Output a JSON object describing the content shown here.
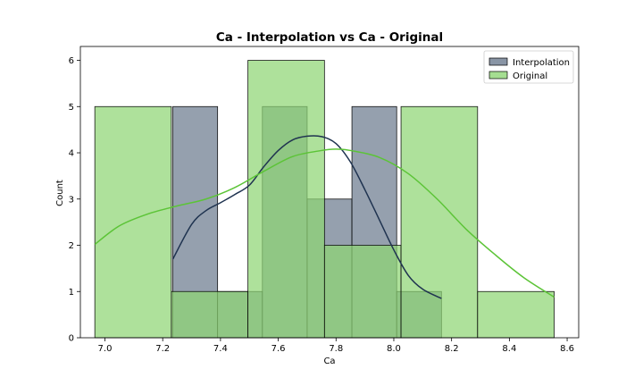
{
  "chart_data": {
    "type": "histogram",
    "title": "Ca - Interpolation vs Ca - Original",
    "xlabel": "Ca",
    "ylabel": "Count",
    "xlim": [
      6.915,
      8.64
    ],
    "ylim": [
      0,
      6.3
    ],
    "xticks": [
      "7.0",
      "7.2",
      "7.4",
      "7.6",
      "7.8",
      "8.0",
      "8.2",
      "8.4",
      "8.6"
    ],
    "xtick_values": [
      7.0,
      7.2,
      7.4,
      7.6,
      7.8,
      8.0,
      8.2,
      8.4,
      8.6
    ],
    "yticks": [
      "0",
      "1",
      "2",
      "3",
      "4",
      "5",
      "6"
    ],
    "ytick_values": [
      0,
      1,
      2,
      3,
      4,
      5,
      6
    ],
    "grid": false,
    "legend_position": "top-right",
    "series": [
      {
        "name": "Interpolation",
        "fill": "#6c7b8f",
        "line": "#1f3350",
        "bins": [
          {
            "x0": 7.235,
            "x1": 7.39,
            "count": 5
          },
          {
            "x0": 7.39,
            "x1": 7.545,
            "count": 1
          },
          {
            "x0": 7.545,
            "x1": 7.7,
            "count": 5
          },
          {
            "x0": 7.7,
            "x1": 7.855,
            "count": 3
          },
          {
            "x0": 7.855,
            "x1": 8.01,
            "count": 5
          },
          {
            "x0": 8.01,
            "x1": 8.165,
            "count": 1
          }
        ],
        "kde": {
          "x": [
            7.235,
            7.3,
            7.35,
            7.4,
            7.45,
            7.5,
            7.55,
            7.6,
            7.65,
            7.7,
            7.75,
            7.8,
            7.85,
            7.9,
            7.95,
            8.0,
            8.05,
            8.1,
            8.165
          ],
          "y": [
            1.7,
            2.45,
            2.75,
            2.92,
            3.1,
            3.3,
            3.7,
            4.05,
            4.28,
            4.36,
            4.35,
            4.2,
            3.8,
            3.2,
            2.55,
            1.9,
            1.35,
            1.05,
            0.85
          ]
        }
      },
      {
        "name": "Original",
        "fill": "#8fd675",
        "line": "#5cc437",
        "bins": [
          {
            "x0": 6.965,
            "x1": 7.23,
            "count": 5
          },
          {
            "x0": 7.23,
            "x1": 7.495,
            "count": 1
          },
          {
            "x0": 7.495,
            "x1": 7.76,
            "count": 6
          },
          {
            "x0": 7.76,
            "x1": 8.025,
            "count": 2
          },
          {
            "x0": 8.025,
            "x1": 8.29,
            "count": 5
          },
          {
            "x0": 8.29,
            "x1": 8.555,
            "count": 1
          }
        ],
        "kde": {
          "x": [
            6.965,
            7.05,
            7.15,
            7.25,
            7.35,
            7.45,
            7.55,
            7.65,
            7.75,
            7.8,
            7.85,
            7.95,
            8.05,
            8.15,
            8.25,
            8.35,
            8.45,
            8.555
          ],
          "y": [
            2.02,
            2.42,
            2.68,
            2.85,
            3.0,
            3.25,
            3.6,
            3.92,
            4.05,
            4.08,
            4.05,
            3.9,
            3.55,
            3.0,
            2.35,
            1.8,
            1.3,
            0.88
          ]
        }
      }
    ]
  }
}
